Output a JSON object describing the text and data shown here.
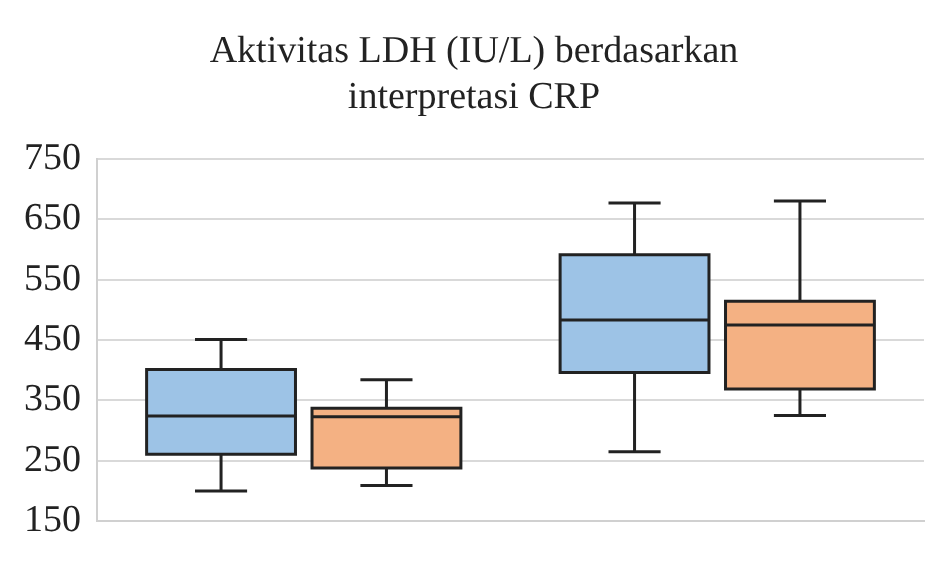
{
  "chart_data": {
    "type": "box",
    "title": "Aktivitas LDH (IU/L) berdasarkan interpretasi CRP",
    "categories": [
      null,
      null
    ],
    "series": [
      {
        "color": "#9dc3e6",
        "boxes": [
          {
            "low": 200,
            "q1": 261,
            "median": 324,
            "q3": 401,
            "high": 451
          },
          {
            "low": 265,
            "q1": 396,
            "median": 483,
            "q3": 591,
            "high": 677
          }
        ]
      },
      {
        "color": "#f4b183",
        "boxes": [
          {
            "low": 209,
            "q1": 238,
            "median": 323,
            "q3": 337,
            "high": 384
          },
          {
            "low": 325,
            "q1": 369,
            "median": 475,
            "q3": 514,
            "high": 680
          }
        ]
      }
    ],
    "ylim": [
      150,
      750
    ],
    "yticks": [
      150,
      250,
      350,
      450,
      550,
      650,
      750
    ],
    "grid": "y",
    "tick_labels": "y",
    "legend": false
  }
}
